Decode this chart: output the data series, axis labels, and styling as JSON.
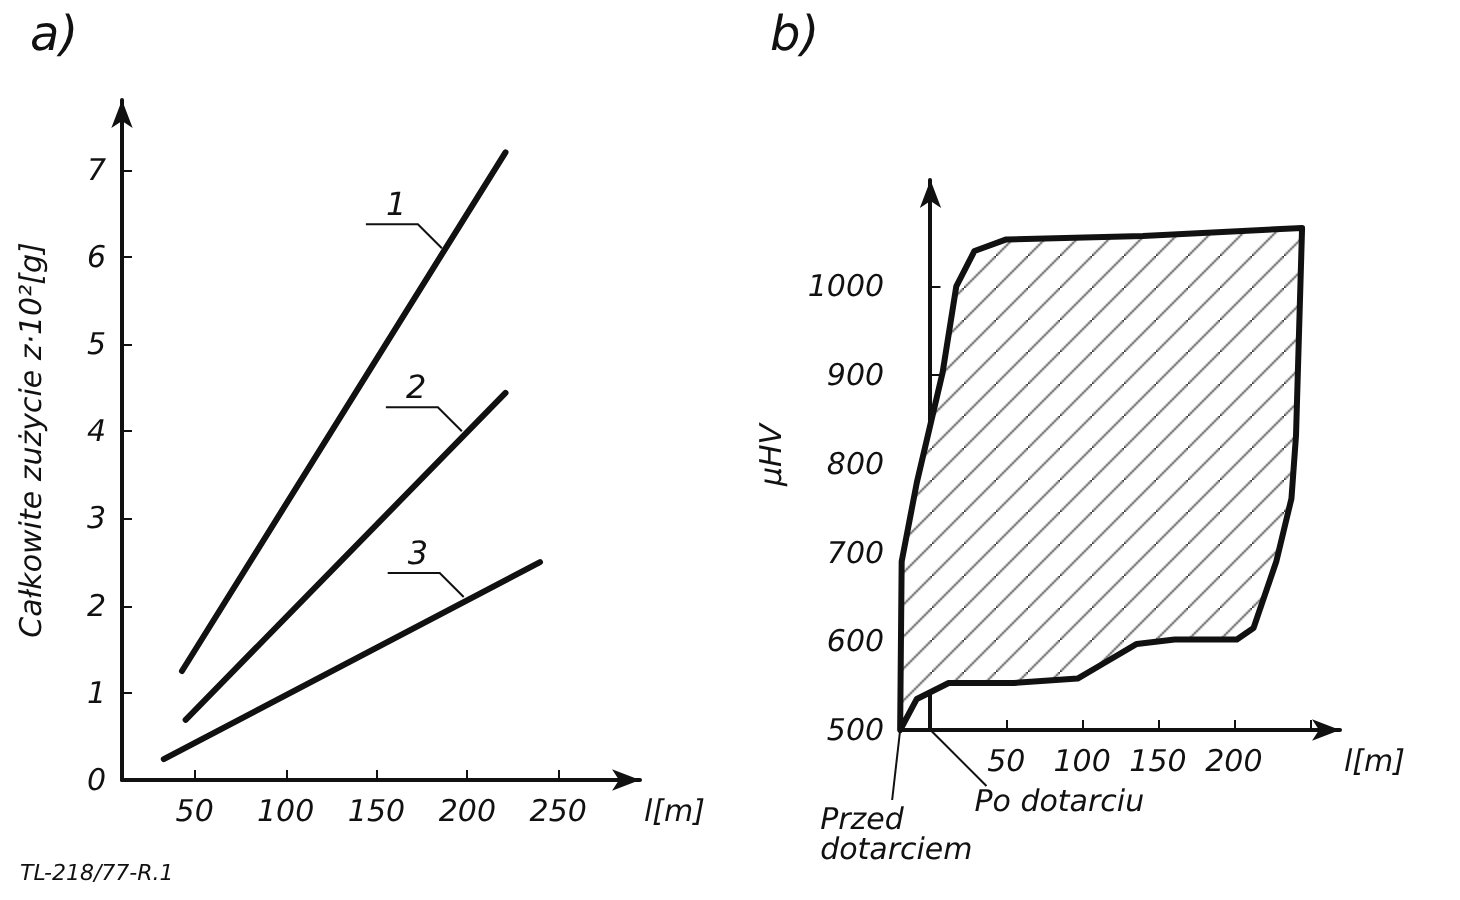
{
  "chart_data": [
    {
      "type": "line",
      "title": "a)",
      "xlabel": "l[m]",
      "ylabel": "Całkowite zużycie z·10²[g]",
      "xlim": [
        10,
        295
      ],
      "xticks": [
        50,
        100,
        150,
        200,
        250
      ],
      "ylim": [
        0,
        7.8
      ],
      "yticks": [
        0,
        1,
        2,
        3,
        4,
        5,
        6,
        7
      ],
      "grid": false,
      "marker": "none",
      "series": [
        {
          "color": "#111111",
          "x": [
            43,
            221
          ],
          "values": [
            1.25,
            7.2
          ]
        },
        {
          "color": "#111111",
          "x": [
            45,
            221
          ],
          "values": [
            0.69,
            4.44
          ]
        },
        {
          "color": "#111111",
          "x": [
            33,
            240
          ],
          "values": [
            0.24,
            2.5
          ]
        }
      ],
      "annotations": [
        {
          "text": "1",
          "x": 186,
          "y": 6.1
        },
        {
          "text": "2",
          "x": 197,
          "y": 4.0
        },
        {
          "text": "3",
          "x": 198,
          "y": 2.1
        },
        "TL-218/77-R.1"
      ]
    },
    {
      "type": "area",
      "title": "b)",
      "xlabel": "l[m]",
      "ylabel": "μHV",
      "xlim": [
        -20,
        270
      ],
      "xticks": [
        {
          "value": 0,
          "label": null
        },
        50,
        100,
        150,
        200,
        {
          "value": 250,
          "label": null
        }
      ],
      "ylim": [
        500,
        1120
      ],
      "yticks": [
        500,
        600,
        700,
        800,
        900,
        1000
      ],
      "grid": false,
      "marker": "none",
      "series": [
        {
          "color": "#111111",
          "x": [
            -20,
            -19,
            -9,
            8,
            17,
            29,
            50,
            140,
            245,
            241,
            238,
            228,
            213,
            202,
            161,
            136,
            114,
            97,
            55,
            12,
            -9,
            -20
          ],
          "values": [
            500,
            690,
            779,
            903,
            1000,
            1040,
            1053,
            1057,
            1066,
            832,
            761,
            690,
            615,
            602,
            602,
            597,
            575,
            558,
            553,
            553,
            535,
            500
          ]
        }
      ],
      "annotations": [
        {
          "text": "Przed dotarciem",
          "x": -20,
          "y": 500
        },
        "Po dotarciu"
      ]
    }
  ]
}
